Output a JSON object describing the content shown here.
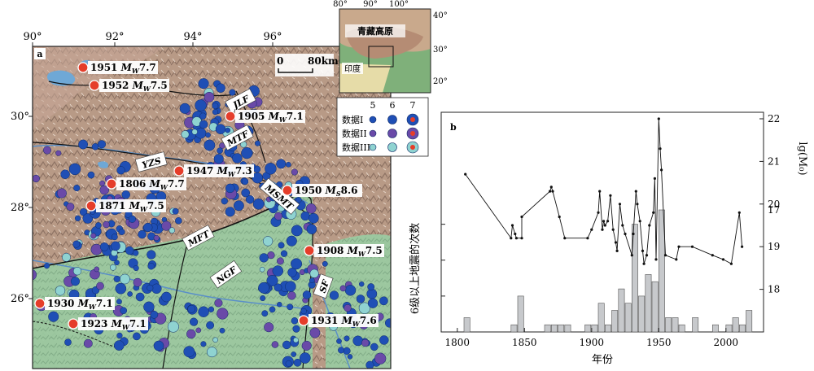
{
  "map_a": {
    "panel_label": "a",
    "lon_labels": [
      "90°",
      "92°",
      "94°",
      "96°"
    ],
    "lat_labels": [
      "30°",
      "28°",
      "26°"
    ],
    "scale": {
      "zero": "0",
      "end": "80km"
    },
    "faults": [
      "JLF",
      "MTF",
      "YZS",
      "MFT",
      "NGF",
      "MSMT",
      "SF"
    ],
    "events": [
      {
        "year": "1951",
        "mag": "7.7",
        "type": "W"
      },
      {
        "year": "1952",
        "mag": "7.5",
        "type": "W"
      },
      {
        "year": "1905",
        "mag": "7.1",
        "type": "W"
      },
      {
        "year": "1947",
        "mag": "7.3",
        "type": "W"
      },
      {
        "year": "1806",
        "mag": "7.7",
        "type": "W"
      },
      {
        "year": "1950",
        "mag": "8.6",
        "type": "S"
      },
      {
        "year": "1871",
        "mag": "7.5",
        "type": "W"
      },
      {
        "year": "1908",
        "mag": "7.5",
        "type": "W"
      },
      {
        "year": "1930",
        "mag": "7.1",
        "type": "W"
      },
      {
        "year": "1923",
        "mag": "7.1",
        "type": "W"
      },
      {
        "year": "1931",
        "mag": "7.6",
        "type": "W"
      }
    ],
    "legend": {
      "mags": [
        "5",
        "6",
        "7"
      ],
      "rows": [
        {
          "label": "数据I",
          "color": "#1f4fb5"
        },
        {
          "label": "数据II",
          "color": "#6a4aa8"
        },
        {
          "label": "数据III",
          "color": "#8fd3d1"
        }
      ]
    },
    "inset": {
      "lon_labels": [
        "80°",
        "90°",
        "100°"
      ],
      "lat_labels": [
        "40°",
        "30°",
        "20°"
      ],
      "region": "青藏高原",
      "country": "印度"
    }
  },
  "chart_b": {
    "panel_label": "b",
    "xlabel": "年份",
    "ylabel_left": "6级以上地震的次数",
    "ylabel_right": "lg(M₀)",
    "x_ticks": [
      "1800",
      "1850",
      "1900",
      "1950",
      "2000"
    ],
    "left_ticks": [
      "0",
      "5",
      "10",
      "15"
    ],
    "right_ticks": [
      "18",
      "19",
      "20",
      "21",
      "22"
    ],
    "extra_tick": "17"
  },
  "chart_data": [
    {
      "type": "bar",
      "ylabel": "6级以上地震的次数",
      "xlabel": "年份",
      "xlim": [
        1800,
        2020
      ],
      "ylim": [
        0,
        18
      ],
      "bin_width": 5,
      "x": [
        1805,
        1840,
        1845,
        1865,
        1870,
        1875,
        1880,
        1895,
        1900,
        1905,
        1910,
        1915,
        1920,
        1925,
        1930,
        1935,
        1940,
        1945,
        1950,
        1955,
        1960,
        1965,
        1975,
        1990,
        2000,
        2005,
        2010,
        2015
      ],
      "values": [
        2,
        1,
        5,
        1,
        1,
        1,
        1,
        1,
        1,
        4,
        1,
        3,
        6,
        4,
        15,
        5,
        8,
        7,
        17,
        2,
        2,
        1,
        2,
        1,
        1,
        2,
        1,
        3
      ]
    },
    {
      "type": "line",
      "ylabel": "lg(M₀)",
      "xlabel": "年份",
      "xlim": [
        1800,
        2020
      ],
      "ylim": [
        17,
        22
      ],
      "x": [
        1806,
        1840,
        1841,
        1843,
        1844,
        1848,
        1848,
        1869,
        1870,
        1871,
        1876,
        1880,
        1897,
        1900,
        1905,
        1906,
        1908,
        1909,
        1910,
        1912,
        1914,
        1916,
        1918,
        1919,
        1921,
        1923,
        1925,
        1930,
        1931,
        1933,
        1934,
        1936,
        1938,
        1939,
        1941,
        1943,
        1946,
        1947,
        1948,
        1950,
        1951,
        1952,
        1955,
        1963,
        1965,
        1975,
        1990,
        1998,
        2004,
        2010,
        2012
      ],
      "values": [
        20.7,
        19.2,
        19.5,
        19.3,
        19.2,
        19.2,
        19.7,
        20.3,
        20.4,
        20.3,
        19.7,
        19.2,
        19.2,
        19.4,
        19.8,
        20.3,
        19.4,
        19.6,
        19.5,
        19.6,
        20.2,
        19.4,
        19.1,
        18.9,
        20.0,
        19.5,
        19.3,
        18.8,
        19.3,
        20.3,
        20.0,
        19.6,
        18.9,
        18.6,
        18.8,
        19.5,
        19.8,
        20.6,
        18.7,
        22.0,
        21.3,
        20.8,
        18.8,
        18.7,
        19.0,
        19.0,
        18.8,
        18.7,
        18.6,
        19.8,
        19.0
      ]
    }
  ]
}
